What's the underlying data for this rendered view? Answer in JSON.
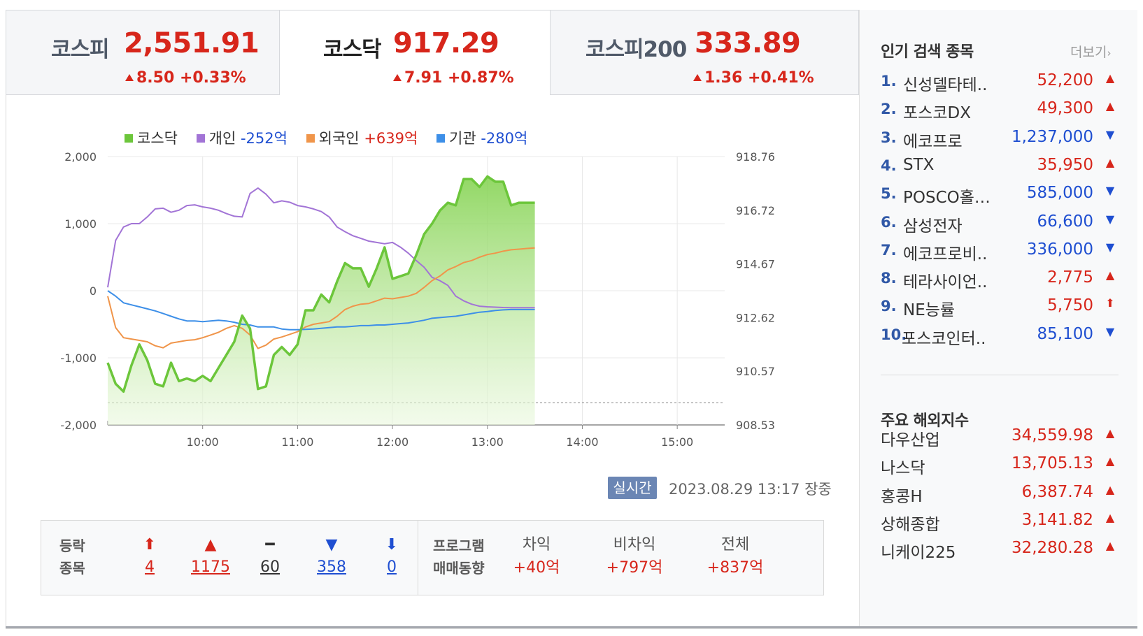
{
  "tabs": [
    {
      "name": "코스피",
      "value": "2,551.91",
      "change": "8.50 +0.33%"
    },
    {
      "name": "코스닥",
      "value": "917.29",
      "change": "7.91 +0.87%"
    },
    {
      "name": "코스피200",
      "value": "333.89",
      "change": "1.36 +0.41%"
    }
  ],
  "legend": [
    {
      "label": "코스닥",
      "amount": "",
      "color": "#6cc63b"
    },
    {
      "label": "개인",
      "amount": "-252억",
      "color": "#a274d6"
    },
    {
      "label": "외국인",
      "amount": "+639억",
      "color": "#f0954a"
    },
    {
      "label": "기관",
      "amount": "-280억",
      "color": "#3d8fe8"
    }
  ],
  "chart_data": {
    "type": "line",
    "x_ticks": [
      "10:00",
      "11:00",
      "12:00",
      "13:00",
      "14:00",
      "15:00"
    ],
    "y_left_ticks": [
      "2,000",
      "1,000",
      "0",
      "-1,000",
      "-2,000"
    ],
    "y_right_ticks": [
      "918.76",
      "916.72",
      "914.67",
      "912.62",
      "910.57",
      "908.53"
    ],
    "y_left_range": [
      -2000,
      2000
    ],
    "y_right_range": [
      908.53,
      918.76
    ],
    "x_range_minutes": [
      0,
      390
    ],
    "baseline_value": 909.38,
    "series": [
      {
        "name": "코스닥",
        "axis": "right",
        "color": "#6cc63b",
        "t": [
          0,
          5,
          10,
          15,
          20,
          25,
          30,
          35,
          40,
          45,
          50,
          55,
          60,
          65,
          70,
          75,
          80,
          85,
          90,
          95,
          100,
          105,
          110,
          115,
          120,
          125,
          130,
          135,
          140,
          145,
          150,
          155,
          160,
          165,
          170,
          175,
          180,
          185,
          190,
          195,
          200,
          205,
          210,
          215,
          220,
          225,
          230,
          235,
          240,
          245,
          250,
          255,
          260,
          265,
          270
        ],
        "v": [
          910.9,
          910.1,
          909.8,
          910.8,
          911.6,
          911.0,
          910.1,
          910.0,
          910.9,
          910.2,
          910.3,
          910.2,
          910.4,
          910.2,
          910.7,
          911.2,
          911.7,
          912.7,
          912.2,
          909.9,
          910.0,
          911.2,
          911.5,
          911.2,
          911.6,
          912.9,
          912.9,
          913.5,
          913.2,
          914.0,
          914.7,
          914.5,
          914.5,
          913.8,
          914.5,
          915.3,
          914.1,
          914.2,
          914.3,
          915.0,
          915.8,
          916.2,
          916.7,
          917.0,
          916.9,
          917.9,
          917.9,
          917.6,
          918.0,
          917.8,
          917.8,
          916.9,
          917.0,
          917.0,
          917.0
        ]
      },
      {
        "name": "개인",
        "axis": "left",
        "color": "#a274d6",
        "t": [
          0,
          5,
          10,
          15,
          20,
          25,
          30,
          35,
          40,
          45,
          50,
          55,
          60,
          65,
          70,
          75,
          80,
          85,
          90,
          95,
          100,
          105,
          110,
          115,
          120,
          125,
          130,
          135,
          140,
          145,
          150,
          155,
          160,
          165,
          170,
          175,
          180,
          185,
          190,
          195,
          200,
          205,
          210,
          215,
          220,
          225,
          230,
          235,
          240,
          245,
          250,
          255,
          260,
          265,
          270
        ],
        "v": [
          50,
          750,
          950,
          1000,
          1000,
          1100,
          1220,
          1230,
          1170,
          1200,
          1270,
          1280,
          1250,
          1230,
          1200,
          1150,
          1110,
          1100,
          1450,
          1530,
          1440,
          1310,
          1340,
          1320,
          1270,
          1250,
          1220,
          1180,
          1100,
          950,
          880,
          820,
          780,
          740,
          720,
          700,
          720,
          650,
          560,
          450,
          350,
          200,
          150,
          80,
          -80,
          -150,
          -200,
          -230,
          -240,
          -245,
          -250,
          -252,
          -252,
          -252,
          -252
        ]
      },
      {
        "name": "외국인",
        "axis": "left",
        "color": "#f0954a",
        "t": [
          0,
          5,
          10,
          15,
          20,
          25,
          30,
          35,
          40,
          45,
          50,
          55,
          60,
          65,
          70,
          75,
          80,
          85,
          90,
          95,
          100,
          105,
          110,
          115,
          120,
          125,
          130,
          135,
          140,
          145,
          150,
          155,
          160,
          165,
          170,
          175,
          180,
          185,
          190,
          195,
          200,
          205,
          210,
          215,
          220,
          225,
          230,
          235,
          240,
          245,
          250,
          255,
          260,
          265,
          270
        ],
        "v": [
          -80,
          -550,
          -700,
          -720,
          -740,
          -760,
          -820,
          -850,
          -780,
          -760,
          -740,
          -730,
          -700,
          -660,
          -620,
          -560,
          -520,
          -560,
          -660,
          -860,
          -810,
          -720,
          -690,
          -650,
          -610,
          -540,
          -500,
          -480,
          -460,
          -380,
          -280,
          -230,
          -200,
          -190,
          -150,
          -110,
          -120,
          -100,
          -80,
          -40,
          50,
          150,
          220,
          310,
          360,
          420,
          450,
          500,
          540,
          560,
          590,
          610,
          620,
          630,
          639
        ]
      },
      {
        "name": "기관",
        "axis": "left",
        "color": "#3d8fe8",
        "t": [
          0,
          5,
          10,
          15,
          20,
          25,
          30,
          35,
          40,
          45,
          50,
          55,
          60,
          65,
          70,
          75,
          80,
          85,
          90,
          95,
          100,
          105,
          110,
          115,
          120,
          125,
          130,
          135,
          140,
          145,
          150,
          155,
          160,
          165,
          170,
          175,
          180,
          185,
          190,
          195,
          200,
          205,
          210,
          215,
          220,
          225,
          230,
          235,
          240,
          245,
          250,
          255,
          260,
          265,
          270
        ],
        "v": [
          0,
          -80,
          -180,
          -210,
          -240,
          -270,
          -300,
          -340,
          -380,
          -420,
          -450,
          -450,
          -460,
          -450,
          -440,
          -450,
          -470,
          -500,
          -510,
          -540,
          -540,
          -540,
          -570,
          -580,
          -580,
          -575,
          -570,
          -560,
          -550,
          -540,
          -540,
          -530,
          -520,
          -520,
          -510,
          -510,
          -500,
          -490,
          -480,
          -460,
          -440,
          -410,
          -400,
          -390,
          -380,
          -360,
          -340,
          -320,
          -310,
          -295,
          -285,
          -280,
          -280,
          -280,
          -280
        ]
      }
    ]
  },
  "realtime_label": "실시간",
  "timestamp": "2023.08.29 13:17 장중",
  "market": {
    "label_line1": "등락",
    "label_line2": "종목",
    "counts": [
      {
        "arrow": "⬆",
        "value": "4",
        "color": "#d7261b"
      },
      {
        "arrow": "▲",
        "value": "1175",
        "color": "#d7261b"
      },
      {
        "arrow": "━",
        "value": "60",
        "color": "#333"
      },
      {
        "arrow": "▼",
        "value": "358",
        "color": "#1f4fd1"
      },
      {
        "arrow": "⬇",
        "value": "0",
        "color": "#1f4fd1"
      }
    ],
    "program_line1": "프로그램",
    "program_line2": "매매동향",
    "program": [
      {
        "label": "차익",
        "value": "+40억"
      },
      {
        "label": "비차익",
        "value": "+797억"
      },
      {
        "label": "전체",
        "value": "+837억"
      }
    ]
  },
  "popular": {
    "title": "인기 검색 종목",
    "more": "더보기",
    "items": [
      {
        "rank": "1.",
        "name": "신성델타테..",
        "price": "52,200",
        "dir": "up"
      },
      {
        "rank": "2.",
        "name": "포스코DX",
        "price": "49,300",
        "dir": "up"
      },
      {
        "rank": "3.",
        "name": "에코프로",
        "price": "1,237,000",
        "dir": "down"
      },
      {
        "rank": "4.",
        "name": "STX",
        "price": "35,950",
        "dir": "up"
      },
      {
        "rank": "5.",
        "name": "POSCO홀…",
        "price": "585,000",
        "dir": "down"
      },
      {
        "rank": "6.",
        "name": "삼성전자",
        "price": "66,600",
        "dir": "down"
      },
      {
        "rank": "7.",
        "name": "에코프로비..",
        "price": "336,000",
        "dir": "down"
      },
      {
        "rank": "8.",
        "name": "테라사이언..",
        "price": "2,775",
        "dir": "up"
      },
      {
        "rank": "9.",
        "name": "NE능률",
        "price": "5,750",
        "dir": "upper"
      },
      {
        "rank": "10.",
        "name": "포스코인터..",
        "price": "85,100",
        "dir": "down"
      }
    ]
  },
  "world": {
    "title": "주요 해외지수",
    "items": [
      {
        "name": "다우산업",
        "value": "34,559.98"
      },
      {
        "name": "나스닥",
        "value": "13,705.13"
      },
      {
        "name": "홍콩H",
        "value": "6,387.74"
      },
      {
        "name": "상해종합",
        "value": "3,141.82"
      },
      {
        "name": "니케이225",
        "value": "32,280.28"
      }
    ]
  }
}
